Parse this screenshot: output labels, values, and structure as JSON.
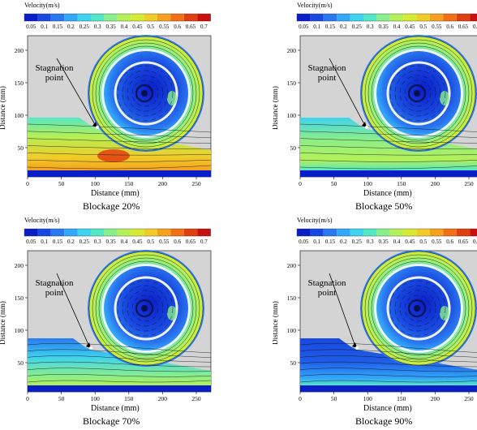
{
  "colorbar": {
    "title": "Velocity(m/s)",
    "ticks": [
      "0.05",
      "0.1",
      "0.15",
      "0.2",
      "0.25",
      "0.3",
      "0.35",
      "0.4",
      "0.45",
      "0.5",
      "0.55",
      "0.6",
      "0.65",
      "0.7"
    ],
    "colors": [
      "#0a1ec8",
      "#1848e0",
      "#2a78f0",
      "#32a8f8",
      "#3ed2ee",
      "#55e6c6",
      "#8aee8c",
      "#b4f058",
      "#d6ea34",
      "#f0cc28",
      "#f6a020",
      "#f07018",
      "#e04010",
      "#c81010"
    ]
  },
  "axes": {
    "ylabel": "Distance (mm)",
    "xlabel": "Distance (mm)",
    "xticks": [
      "0",
      "50",
      "100",
      "150",
      "200",
      "250"
    ],
    "yticks": [
      "200",
      "150",
      "100",
      "50"
    ]
  },
  "annotation": [
    "Stagnation",
    "point"
  ],
  "panels": [
    {
      "caption": "Blockage 20%",
      "blockage": 20
    },
    {
      "caption": "Blockage 50%",
      "blockage": 50
    },
    {
      "caption": "Blockage 70%",
      "blockage": 70
    },
    {
      "caption": "Blockage 90%",
      "blockage": 90
    }
  ]
}
